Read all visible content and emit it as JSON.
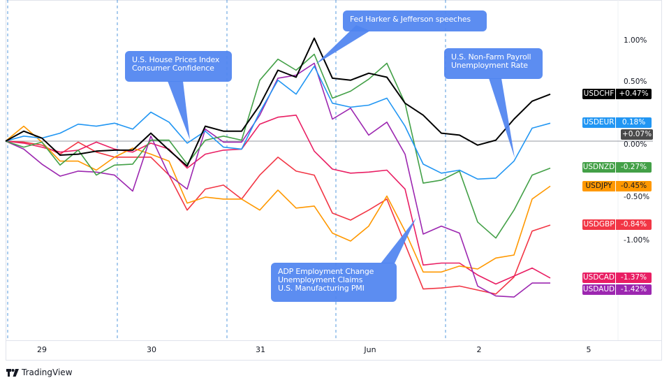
{
  "chart_data": {
    "type": "line",
    "x": [
      "May 28 16:00",
      "May 28 20:00",
      "May 29 00:00",
      "May 29 04:00",
      "May 29 08:00",
      "May 29 12:00",
      "May 29 16:00",
      "May 29 20:00",
      "May 30 00:00",
      "May 30 04:00",
      "May 30 08:00",
      "May 30 12:00",
      "May 30 16:00",
      "May 30 20:00",
      "May 31 00:00",
      "May 31 04:00",
      "May 31 08:00",
      "May 31 12:00",
      "May 31 16:00",
      "May 31 20:00",
      "Jun 1 00:00",
      "Jun 1 04:00",
      "Jun 1 08:00",
      "Jun 1 12:00",
      "Jun 1 16:00",
      "Jun 1 20:00",
      "Jun 2 00:00",
      "Jun 2 04:00",
      "Jun 2 08:00",
      "Jun 2 12:00",
      "Jun 2 16:00"
    ],
    "x_tick_labels": [
      "29",
      "30",
      "31",
      "Jun",
      "2",
      "5"
    ],
    "ylabel_unit": "%",
    "y_tick_labels": [
      "1.00%",
      "0.50%",
      "0.00%",
      "-0.50%",
      "-1.00%"
    ],
    "ylim": [
      -1.7,
      1.3
    ],
    "grid": false,
    "baseline_label": "+0.07%",
    "series": [
      {
        "name": "USDCHF",
        "color": "#000000",
        "last": "+0.47%",
        "values": [
          0,
          0.1,
          0.03,
          -0.14,
          -0.13,
          -0.1,
          -0.09,
          -0.09,
          0.08,
          -0.09,
          -0.25,
          0.15,
          0.1,
          0.1,
          0.36,
          0.71,
          0.64,
          1.03,
          0.63,
          0.61,
          0.68,
          0.64,
          0.38,
          0.26,
          0.08,
          0.06,
          -0.04,
          0.01,
          0.22,
          0.4,
          0.47
        ]
      },
      {
        "name": "USDEUR",
        "color": "#2196f3",
        "last": "0.18%",
        "values": [
          0,
          0.05,
          0.03,
          0.08,
          0.17,
          0.15,
          0.18,
          0.12,
          0.29,
          0.19,
          -0.02,
          0.1,
          -0.06,
          -0.08,
          0.29,
          0.61,
          0.47,
          0.75,
          0.38,
          0.34,
          0.36,
          0.43,
          0.15,
          -0.23,
          -0.32,
          -0.29,
          -0.38,
          -0.37,
          -0.2,
          0.13,
          0.18
        ]
      },
      {
        "name": "USDNZD",
        "color": "#43a047",
        "last": "-0.27%",
        "values": [
          0,
          -0.06,
          -0.01,
          -0.24,
          -0.09,
          -0.34,
          -0.24,
          -0.23,
          0.01,
          0.01,
          -0.23,
          0.01,
          0.05,
          0.01,
          0.61,
          0.82,
          0.71,
          0.87,
          0.43,
          0.5,
          0.62,
          0.78,
          0.38,
          -0.42,
          -0.39,
          -0.3,
          -0.81,
          -0.97,
          -0.69,
          -0.34,
          -0.27
        ]
      },
      {
        "name": "USDJPY",
        "color": "#ff9800",
        "last": "-0.45%",
        "values": [
          0,
          0.15,
          -0.01,
          -0.2,
          -0.2,
          -0.29,
          -0.16,
          -0.07,
          -0.13,
          -0.2,
          -0.62,
          -0.56,
          -0.58,
          -0.58,
          -0.69,
          -0.49,
          -0.67,
          -0.65,
          -0.92,
          -1.0,
          -0.85,
          -0.55,
          -0.9,
          -1.31,
          -1.31,
          -1.25,
          -1.28,
          -1.17,
          -1.14,
          -0.58,
          -0.45
        ]
      },
      {
        "name": "USDGBP",
        "color": "#f23645",
        "last": "-0.84%",
        "values": [
          0,
          -0.01,
          -0.04,
          -0.13,
          -0.01,
          -0.11,
          -0.16,
          -0.16,
          -0.16,
          -0.34,
          -0.69,
          -0.48,
          -0.44,
          -0.58,
          -0.34,
          -0.16,
          -0.3,
          -0.34,
          -0.72,
          -0.79,
          -0.69,
          -0.58,
          -1.03,
          -1.48,
          -1.47,
          -1.45,
          -1.49,
          -1.53,
          -1.36,
          -0.9,
          -0.84
        ]
      },
      {
        "name": "USDCAD",
        "color": "#e91e63",
        "last": "-1.37%",
        "values": [
          0,
          -0.02,
          -0.06,
          -0.11,
          -0.09,
          -0.01,
          -0.08,
          -0.11,
          -0.02,
          -0.08,
          -0.27,
          -0.13,
          -0.09,
          -0.08,
          0.17,
          0.24,
          0.26,
          -0.1,
          -0.28,
          -0.32,
          -0.31,
          -0.29,
          -0.48,
          -1.24,
          -1.22,
          -1.22,
          -1.34,
          -1.43,
          -1.35,
          -1.27,
          -1.37
        ]
      },
      {
        "name": "USDAUD",
        "color": "#9c27b0",
        "last": "-1.42%",
        "values": [
          0,
          -0.08,
          -0.23,
          -0.35,
          -0.3,
          -0.31,
          -0.34,
          -0.5,
          0.05,
          -0.34,
          -0.48,
          0.12,
          -0.01,
          -0.01,
          0.26,
          0.63,
          0.66,
          0.78,
          0.22,
          0.33,
          0.06,
          0.19,
          -0.13,
          -0.93,
          -0.85,
          -0.92,
          -1.45,
          -1.55,
          -1.56,
          -1.42,
          -1.42
        ]
      }
    ],
    "annotations": [
      {
        "text": "U.S. House Prices Index\nConsumer Confidence",
        "x": "May 30 08:00",
        "y": 0.0
      },
      {
        "text": "Fed Harker & Jefferson speeches",
        "x": "May 31 12:00",
        "y": 0.78
      },
      {
        "text": "U.S. Non-Farm Payroll\nUnemployment Rate",
        "x": "Jun 2 08:00",
        "y": -0.16
      },
      {
        "text": "ADP Employment Change\nUnemployment Claims\nU.S. Manufacturing PMI",
        "x": "Jun 1 04:00",
        "y": -0.75
      }
    ]
  },
  "branding": {
    "logo_text": "TradingView",
    "logo_mark": "17"
  }
}
